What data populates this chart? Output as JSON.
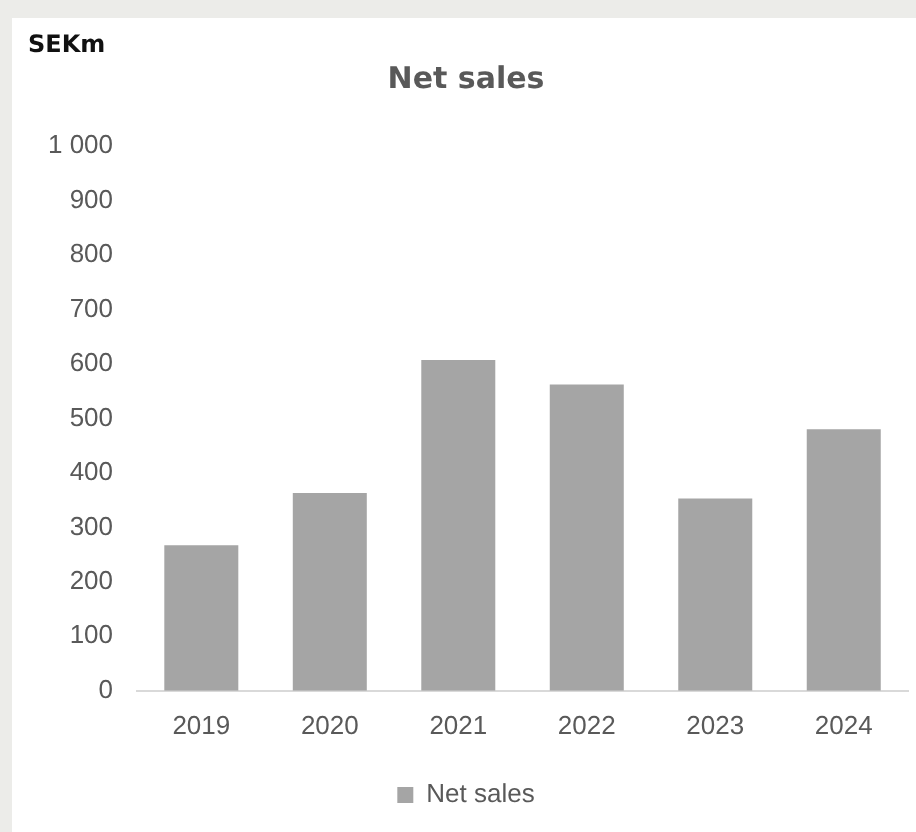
{
  "chart_data": {
    "type": "bar",
    "title": "Net sales",
    "ylabel": "SEKm",
    "categories": [
      "2019",
      "2020",
      "2021",
      "2022",
      "2023",
      "2024"
    ],
    "series": [
      {
        "name": "Net sales",
        "color": "#a5a5a5",
        "values": [
          267,
          363,
          607,
          562,
          353,
          480
        ]
      }
    ],
    "ylim": [
      0,
      1000
    ],
    "yticks": [
      0,
      {
        "value": 100,
        "label": "100"
      },
      200,
      300,
      400,
      500,
      600,
      700,
      800,
      900,
      {
        "value": 1000,
        "label": "1 000"
      }
    ],
    "grid": false,
    "legend": "bottom"
  }
}
